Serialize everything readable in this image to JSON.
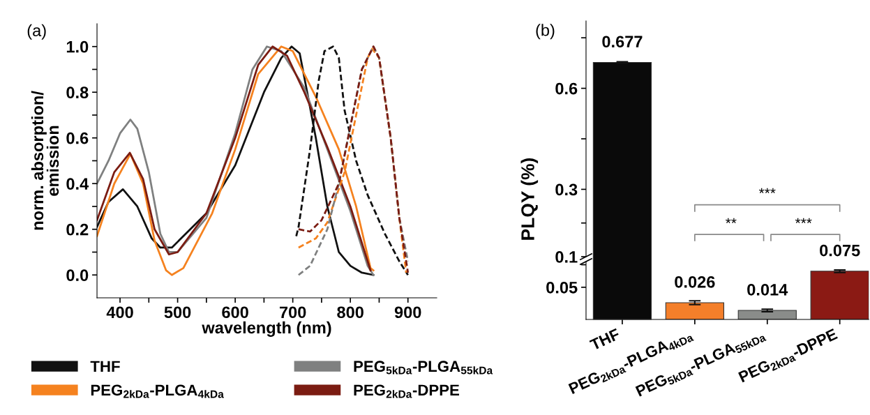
{
  "chart_data": [
    {
      "type": "line",
      "title": "(a)",
      "xlabel": "wavelength (nm)",
      "ylabel": "norm. absorption/\nemission",
      "legend": "bottom",
      "xlim": [
        360,
        950
      ],
      "ylim": [
        -0.1,
        1.1
      ],
      "xticks": [
        400,
        {
          "value": 450,
          "label": null
        },
        500,
        {
          "value": 550,
          "label": null
        },
        600,
        {
          "value": 650,
          "label": null
        },
        700,
        {
          "value": 750,
          "label": null
        },
        800,
        {
          "value": 850,
          "label": null
        },
        900
      ],
      "yticks": [
        {
          "value": 0,
          "label": "0.0"
        },
        {
          "value": 0.1,
          "label": null
        },
        0.2,
        {
          "value": 0.3,
          "label": null
        },
        0.4,
        {
          "value": 0.5,
          "label": null
        },
        0.6,
        {
          "value": 0.7,
          "label": null
        },
        0.8,
        {
          "value": 0.9,
          "label": null
        },
        {
          "value": 1,
          "label": "1.0"
        }
      ],
      "series": [
        {
          "name": "THF",
          "color": "#111111",
          "x": [
            360,
            380,
            405,
            430,
            455,
            470,
            490,
            550,
            600,
            650,
            680,
            698,
            712,
            725,
            740,
            760,
            780,
            800,
            820,
            840
          ],
          "values": [
            0.21,
            0.32,
            0.375,
            0.3,
            0.16,
            0.12,
            0.12,
            0.27,
            0.48,
            0.8,
            0.95,
            1.0,
            0.97,
            0.8,
            0.6,
            0.3,
            0.1,
            0.04,
            0.01,
            0.0
          ]
        },
        {
          "name": "PEG$_{2kDa}$-PLGA$_{4kDa}$",
          "color": "#f5821f",
          "x": [
            360,
            390,
            418,
            440,
            460,
            480,
            490,
            510,
            560,
            600,
            640,
            680,
            700,
            740,
            780,
            810,
            835,
            840
          ],
          "values": [
            0.17,
            0.4,
            0.53,
            0.4,
            0.15,
            0.02,
            0.0,
            0.03,
            0.27,
            0.55,
            0.88,
            1.0,
            0.98,
            0.78,
            0.55,
            0.3,
            0.03,
            0.02
          ]
        },
        {
          "name": "PEG$_{5kDa}$-PLGA$_{55kDa}$",
          "color": "#7f8080",
          "x": [
            360,
            380,
            400,
            418,
            430,
            450,
            470,
            485,
            500,
            550,
            600,
            630,
            655,
            680,
            720,
            760,
            800,
            830,
            840
          ],
          "values": [
            0.4,
            0.5,
            0.62,
            0.68,
            0.64,
            0.45,
            0.18,
            0.1,
            0.1,
            0.25,
            0.62,
            0.9,
            1.0,
            0.98,
            0.82,
            0.55,
            0.28,
            0.04,
            0.0
          ]
        },
        {
          "name": "PEG$_{2kDa}$-DPPE",
          "color": "#7b1c12",
          "x": [
            360,
            390,
            417,
            440,
            460,
            485,
            500,
            550,
            600,
            640,
            665,
            690,
            720,
            760,
            800,
            835
          ],
          "values": [
            0.24,
            0.45,
            0.535,
            0.42,
            0.2,
            0.09,
            0.1,
            0.27,
            0.6,
            0.92,
            1.0,
            0.96,
            0.8,
            0.56,
            0.3,
            0.02
          ]
        },
        {
          "color": "#111111",
          "line_style": "dashed",
          "x": [
            706,
            710,
            730,
            745,
            755,
            770,
            780,
            790,
            810,
            830,
            860,
            885,
            900
          ],
          "values": [
            0.17,
            0.21,
            0.55,
            0.85,
            0.98,
            1.0,
            0.95,
            0.72,
            0.5,
            0.35,
            0.18,
            0.06,
            0.0
          ]
        },
        {
          "color": "#f5821f",
          "line_style": "dashed",
          "x": [
            710,
            740,
            760,
            790,
            810,
            830,
            838,
            850,
            870,
            885,
            897
          ],
          "values": [
            0.12,
            0.16,
            0.23,
            0.45,
            0.7,
            0.95,
            0.99,
            0.95,
            0.6,
            0.25,
            0.01
          ]
        },
        {
          "color": "#7f8080",
          "line_style": "dashed",
          "x": [
            710,
            730,
            760,
            780,
            800,
            820,
            840,
            850,
            870,
            885,
            900
          ],
          "values": [
            0.0,
            0.04,
            0.2,
            0.4,
            0.65,
            0.9,
            1.0,
            0.95,
            0.6,
            0.25,
            0.06
          ]
        },
        {
          "color": "#7b1c12",
          "line_style": "dashed",
          "x": [
            710,
            730,
            750,
            780,
            800,
            820,
            840,
            850,
            870,
            885,
            900
          ],
          "values": [
            0.2,
            0.19,
            0.24,
            0.4,
            0.65,
            0.9,
            1.0,
            0.95,
            0.6,
            0.25,
            0.01
          ]
        }
      ]
    },
    {
      "type": "bar",
      "title": "(b)",
      "ylabel": "PLQY (%)",
      "tick_labels": "y",
      "values": [
        0.677,
        null,
        null,
        null
      ],
      "errors": [
        0.002,
        null,
        null,
        null
      ],
      "data_labels": true,
      "colors": [
        "#0a0a0a",
        "#f47f2a",
        "#8a8c8a",
        "#8b1a14"
      ],
      "ylim": [
        0.1,
        0.8
      ],
      "yticks": [
        0.1,
        {
          "value": 0.2,
          "label": null
        },
        0.3,
        {
          "value": 0.45,
          "label": null
        },
        0.6,
        {
          "value": 0.75,
          "label": null
        }
      ],
      "annotations": [
        "***",
        "**",
        "***"
      ]
    },
    {
      "type": "bar",
      "categories": [
        "THF",
        "PEG$_{2kDa}$-PLGA$_{4kDa}$",
        "PEG$_{5kDa}$-PLGA$_{55kDa}$",
        "PEG$_{2kDa}$-DPPE"
      ],
      "values": [
        null,
        0.026,
        0.014,
        0.075
      ],
      "errors": [
        null,
        0.003,
        0.002,
        0.002
      ],
      "data_labels": true,
      "colors": [
        "#0a0a0a",
        "#f47f2a",
        "#8a8c8a",
        "#8b1a14"
      ],
      "ylim": [
        0,
        0.09
      ],
      "yticks": [
        0.05,
        {
          "value": 0.085,
          "label": null
        }
      ]
    }
  ]
}
